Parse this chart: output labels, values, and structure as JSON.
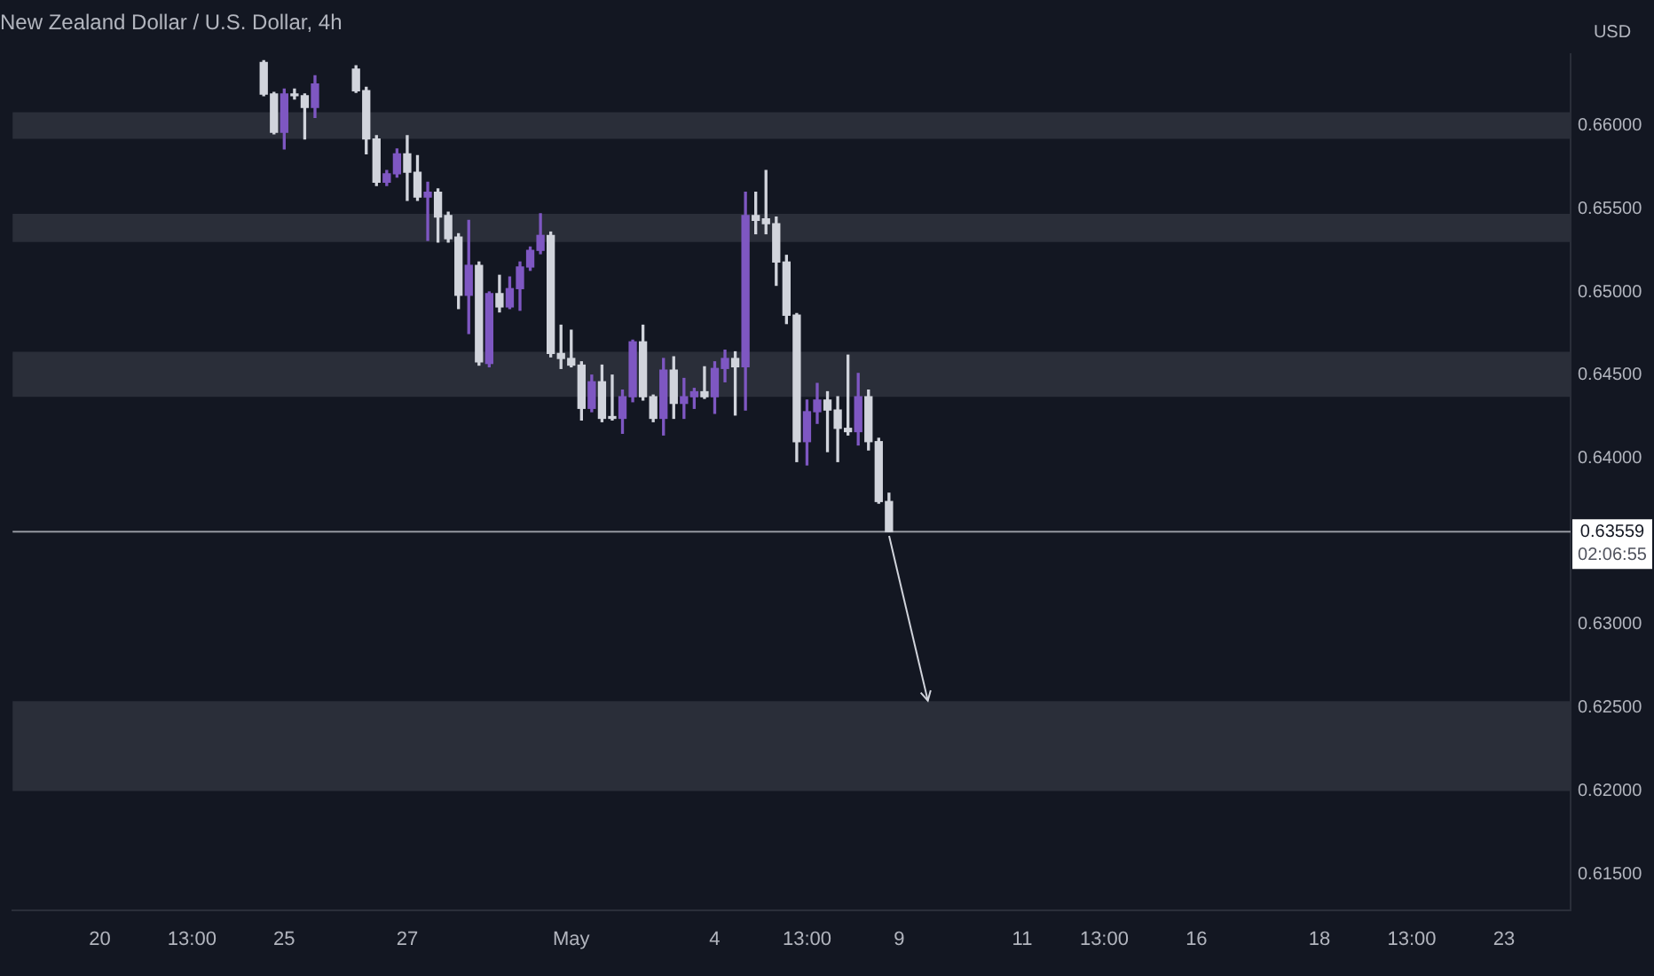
{
  "chart_data": {
    "type": "candlestick",
    "title": "New Zealand Dollar / U.S. Dollar, 4h",
    "ylabel": "USD",
    "categories": [
      null,
      null,
      null,
      null,
      null,
      null,
      null,
      null,
      "20",
      null,
      null,
      null,
      null,
      null,
      null,
      null,
      null,
      "13:00",
      null,
      null,
      null,
      null,
      null,
      null,
      null,
      null,
      "25",
      null,
      null,
      null,
      null,
      null,
      null,
      null,
      null,
      null,
      null,
      null,
      "27",
      null,
      null,
      null,
      null,
      null,
      null,
      null,
      null,
      null,
      null,
      null,
      null,
      null,
      null,
      null,
      "May",
      null,
      null,
      null,
      null,
      null,
      null,
      null,
      null,
      null,
      null,
      null,
      null,
      null,
      "4",
      null,
      null,
      null,
      null,
      null,
      null,
      null,
      null,
      "13:00",
      null,
      null,
      null,
      null,
      null,
      null,
      null,
      null,
      "9",
      null,
      null,
      null,
      null,
      null,
      null,
      null,
      null,
      null,
      null,
      null,
      "11",
      null,
      null,
      null,
      null,
      null,
      null,
      null,
      "13:00",
      null,
      null,
      null,
      null,
      null,
      null,
      null,
      null,
      "16",
      null,
      null,
      null,
      null,
      null,
      null,
      null,
      null,
      null,
      null,
      null,
      "18",
      null,
      null,
      null,
      null,
      null,
      null,
      null,
      null,
      "13:00",
      null,
      null,
      null,
      null,
      null,
      null,
      null,
      null,
      "23",
      null,
      null,
      null,
      null,
      null,
      null
    ],
    "ohlc": [
      null,
      null,
      null,
      null,
      null,
      null,
      null,
      null,
      null,
      null,
      null,
      null,
      null,
      null,
      null,
      null,
      null,
      null,
      null,
      null,
      null,
      null,
      null,
      null,
      [
        0.6638,
        0.6639,
        0.6618,
        0.6619
      ],
      [
        0.6619,
        0.662,
        0.6595,
        0.6596
      ],
      [
        0.6596,
        0.6622,
        0.6586,
        0.6619
      ],
      [
        0.6619,
        0.6622,
        0.6616,
        0.6618
      ],
      [
        0.6618,
        0.6619,
        0.6592,
        0.6611
      ],
      [
        0.6611,
        0.663,
        0.6605,
        0.6625
      ],
      null,
      null,
      null,
      [
        0.6634,
        0.6636,
        0.662,
        0.6621
      ],
      [
        0.6621,
        0.6623,
        0.6583,
        0.6592
      ],
      [
        0.6592,
        0.6594,
        0.6564,
        0.6566
      ],
      [
        0.6566,
        0.6573,
        0.6564,
        0.6571
      ],
      [
        0.6571,
        0.6586,
        0.6569,
        0.6583
      ],
      [
        0.6583,
        0.6594,
        0.6555,
        0.6572
      ],
      [
        0.6572,
        0.6582,
        0.6555,
        0.6557
      ],
      [
        0.6557,
        0.6566,
        0.6531,
        0.656
      ],
      [
        0.656,
        0.6562,
        0.653,
        0.6545
      ],
      [
        0.6546,
        0.6548,
        0.653,
        0.6532
      ],
      [
        0.6533,
        0.6535,
        0.649,
        0.6498
      ],
      [
        0.6498,
        0.6543,
        0.6475,
        0.6516
      ],
      [
        0.6516,
        0.6518,
        0.6456,
        0.6458
      ],
      [
        0.6457,
        0.65,
        0.6455,
        0.6499
      ],
      [
        0.6499,
        0.651,
        0.6488,
        0.6491
      ],
      [
        0.6491,
        0.6509,
        0.649,
        0.6502
      ],
      [
        0.6502,
        0.6518,
        0.6489,
        0.6515
      ],
      [
        0.6515,
        0.6527,
        0.6513,
        0.6525
      ],
      [
        0.6525,
        0.6547,
        0.6523,
        0.6534
      ],
      [
        0.6534,
        0.6536,
        0.6461,
        0.6463
      ],
      [
        0.6463,
        0.648,
        0.6454,
        0.646
      ],
      [
        0.646,
        0.6477,
        0.6455,
        0.6456
      ],
      [
        0.6456,
        0.6458,
        0.6423,
        0.643
      ],
      [
        0.643,
        0.645,
        0.6428,
        0.6446
      ],
      [
        0.6446,
        0.6456,
        0.6422,
        0.6424
      ],
      [
        0.6425,
        0.645,
        0.6423,
        0.6424
      ],
      [
        0.6424,
        0.6441,
        0.6415,
        0.6437
      ],
      [
        0.6437,
        0.6471,
        0.6434,
        0.647
      ],
      [
        0.647,
        0.648,
        0.6435,
        0.6437
      ],
      [
        0.6437,
        0.6438,
        0.6422,
        0.6424
      ],
      [
        0.6424,
        0.646,
        0.6414,
        0.6453
      ],
      [
        0.6453,
        0.6461,
        0.6424,
        0.6433
      ],
      [
        0.6433,
        0.6448,
        0.6424,
        0.6437
      ],
      [
        0.6437,
        0.6442,
        0.643,
        0.644
      ],
      [
        0.644,
        0.6455,
        0.6436,
        0.6437
      ],
      [
        0.6437,
        0.6458,
        0.6427,
        0.6454
      ],
      [
        0.6454,
        0.6465,
        0.6446,
        0.646
      ],
      [
        0.646,
        0.6464,
        0.6426,
        0.6455
      ],
      [
        0.6455,
        0.656,
        0.6429,
        0.6546
      ],
      [
        0.6546,
        0.656,
        0.6535,
        0.6543
      ],
      [
        0.6544,
        0.6573,
        0.6535,
        0.6541
      ],
      [
        0.6541,
        0.6545,
        0.6504,
        0.6518
      ],
      [
        0.6518,
        0.6522,
        0.6481,
        0.6486
      ],
      [
        0.6486,
        0.6487,
        0.6398,
        0.641
      ],
      [
        0.641,
        0.6435,
        0.6396,
        0.6428
      ],
      [
        0.6428,
        0.6445,
        0.6421,
        0.6435
      ],
      [
        0.6435,
        0.644,
        0.6404,
        0.6429
      ],
      [
        0.6429,
        0.6437,
        0.6398,
        0.6418
      ],
      [
        0.6418,
        0.6462,
        0.6414,
        0.6416
      ],
      [
        0.6416,
        0.6451,
        0.6408,
        0.6437
      ],
      [
        0.6437,
        0.6441,
        0.6405,
        0.641
      ],
      [
        0.641,
        0.6412,
        0.6373,
        0.6374
      ],
      [
        0.6374,
        0.6379,
        0.63559,
        0.63559
      ],
      null,
      null,
      null,
      null,
      null,
      null,
      null,
      null,
      null,
      null,
      null,
      null,
      null,
      null,
      null,
      null,
      null,
      null,
      null,
      null,
      null,
      null,
      null,
      null,
      null,
      null,
      null,
      null,
      null,
      null,
      null,
      null,
      null,
      null,
      null,
      null,
      null,
      null,
      null,
      null,
      null,
      null,
      null,
      null,
      null,
      null,
      null,
      null,
      null,
      null,
      null,
      null,
      null,
      null,
      null,
      null,
      null,
      null,
      null,
      null,
      null,
      null,
      null,
      null,
      null,
      null
    ],
    "colors": [
      null,
      null,
      null,
      null,
      null,
      null,
      null,
      null,
      null,
      null,
      null,
      null,
      null,
      null,
      null,
      null,
      null,
      null,
      null,
      null,
      null,
      null,
      null,
      null,
      "#d1d4dc",
      "#d1d4dc",
      "#7e57c2",
      "#d1d4dc",
      "#d1d4dc",
      "#7e57c2",
      null,
      null,
      null,
      "#d1d4dc",
      "#d1d4dc",
      "#d1d4dc",
      "#7e57c2",
      "#7e57c2",
      "#d1d4dc",
      "#d1d4dc",
      "#7e57c2",
      "#d1d4dc",
      "#d1d4dc",
      "#d1d4dc",
      "#7e57c2",
      "#d1d4dc",
      "#7e57c2",
      "#d1d4dc",
      "#7e57c2",
      "#7e57c2",
      "#7e57c2",
      "#7e57c2",
      "#d1d4dc",
      "#d1d4dc",
      "#d1d4dc",
      "#d1d4dc",
      "#7e57c2",
      "#d1d4dc",
      "#d1d4dc",
      "#7e57c2",
      "#7e57c2",
      "#d1d4dc",
      "#d1d4dc",
      "#7e57c2",
      "#d1d4dc",
      "#7e57c2",
      "#7e57c2",
      "#d1d4dc",
      "#7e57c2",
      "#7e57c2",
      "#d1d4dc",
      "#7e57c2",
      "#d1d4dc",
      "#d1d4dc",
      "#d1d4dc",
      "#d1d4dc",
      "#d1d4dc",
      "#7e57c2",
      "#7e57c2",
      "#d1d4dc",
      "#d1d4dc",
      "#d1d4dc",
      "#7e57c2",
      "#d1d4dc",
      "#d1d4dc",
      "#d1d4dc",
      null,
      null,
      null,
      null,
      null,
      null,
      null,
      null,
      null,
      null,
      null,
      null,
      null,
      null,
      null,
      null,
      null,
      null,
      null,
      null,
      null,
      null,
      null,
      null,
      null,
      null,
      null,
      null,
      null,
      null,
      null,
      null,
      null,
      null,
      null,
      null,
      null,
      null,
      null,
      null,
      null,
      null,
      null,
      null,
      null,
      null,
      null,
      null,
      null,
      null,
      null,
      null,
      null,
      null,
      null,
      null,
      null,
      null,
      null,
      null,
      null,
      null,
      null,
      null,
      null,
      null
    ],
    "ylim": [
      0.61284,
      0.66431
    ],
    "yticks": [
      {
        "value": 0.615,
        "label": "0.61500"
      },
      {
        "value": 0.62,
        "label": "0.62000"
      },
      {
        "value": 0.625,
        "label": "0.62500"
      },
      {
        "value": 0.63,
        "label": "0.63000"
      },
      {
        "value": 0.64,
        "label": "0.64000"
      },
      {
        "value": 0.645,
        "label": "0.64500"
      },
      {
        "value": 0.65,
        "label": "0.65000"
      },
      {
        "value": 0.655,
        "label": "0.65500"
      },
      {
        "value": 0.66,
        "label": "0.66000"
      }
    ],
    "bands": [
      {
        "axis": "y",
        "from": 0.6592,
        "to": 0.6608,
        "color": "#2a2e39"
      },
      {
        "axis": "y",
        "from": 0.653,
        "to": 0.6547,
        "color": "#2a2e39"
      },
      {
        "axis": "y",
        "from": 0.6437,
        "to": 0.6464,
        "color": "#2a2e39"
      },
      {
        "axis": "y",
        "from": 0.62,
        "to": 0.6254,
        "color": "#2a2e39"
      }
    ],
    "ref_lines": [
      {
        "axis": "y",
        "value": 0.63559,
        "label": "0.63559",
        "color": "#9598a1"
      }
    ],
    "annotations": [
      "02:06:55"
    ],
    "grid": false,
    "legend": false
  }
}
